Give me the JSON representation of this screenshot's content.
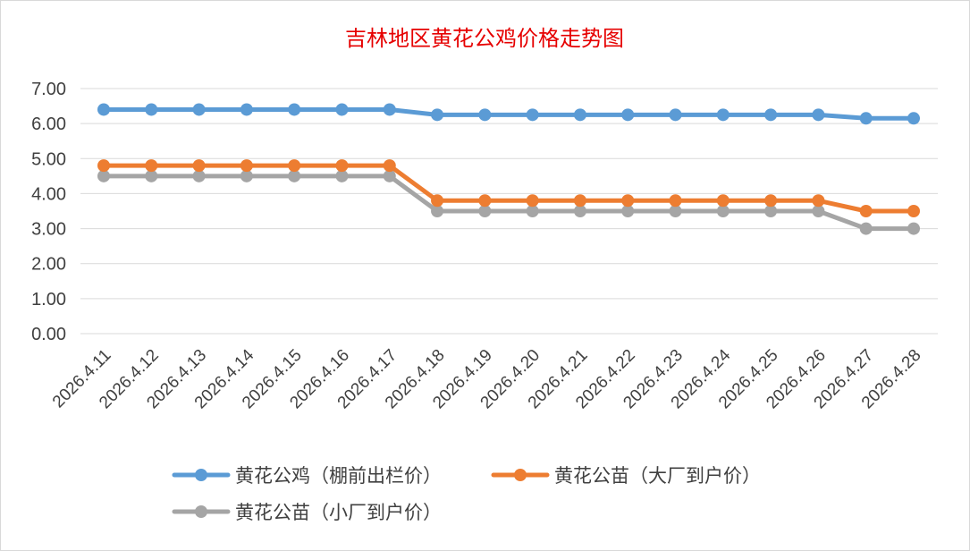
{
  "chart_data": {
    "type": "line",
    "title": "吉林地区黄花公鸡价格走势图",
    "xlabel": "",
    "ylabel": "",
    "categories": [
      "2026.4.11",
      "2026.4.12",
      "2026.4.13",
      "2026.4.14",
      "2026.4.15",
      "2026.4.16",
      "2026.4.17",
      "2026.4.18",
      "2026.4.19",
      "2026.4.20",
      "2026.4.21",
      "2026.4.22",
      "2026.4.23",
      "2026.4.24",
      "2026.4.25",
      "2026.4.26",
      "2026.4.27",
      "2026.4.28"
    ],
    "ylim": [
      0,
      7
    ],
    "yticks": [
      "0.00",
      "1.00",
      "2.00",
      "3.00",
      "4.00",
      "5.00",
      "6.00",
      "7.00"
    ],
    "grid": true,
    "legend_position": "bottom",
    "series": [
      {
        "name": "黄花公鸡（棚前出栏价）",
        "color": "#5b9bd5",
        "values": [
          6.4,
          6.4,
          6.4,
          6.4,
          6.4,
          6.4,
          6.4,
          6.25,
          6.25,
          6.25,
          6.25,
          6.25,
          6.25,
          6.25,
          6.25,
          6.25,
          6.15,
          6.15
        ]
      },
      {
        "name": "黄花公苗（大厂到户价）",
        "color": "#ed7d31",
        "values": [
          4.8,
          4.8,
          4.8,
          4.8,
          4.8,
          4.8,
          4.8,
          3.8,
          3.8,
          3.8,
          3.8,
          3.8,
          3.8,
          3.8,
          3.8,
          3.8,
          3.5,
          3.5
        ]
      },
      {
        "name": "黄花公苗（小厂到户价）",
        "color": "#a5a5a5",
        "values": [
          4.5,
          4.5,
          4.5,
          4.5,
          4.5,
          4.5,
          4.5,
          3.5,
          3.5,
          3.5,
          3.5,
          3.5,
          3.5,
          3.5,
          3.5,
          3.5,
          3.0,
          3.0
        ]
      }
    ]
  }
}
